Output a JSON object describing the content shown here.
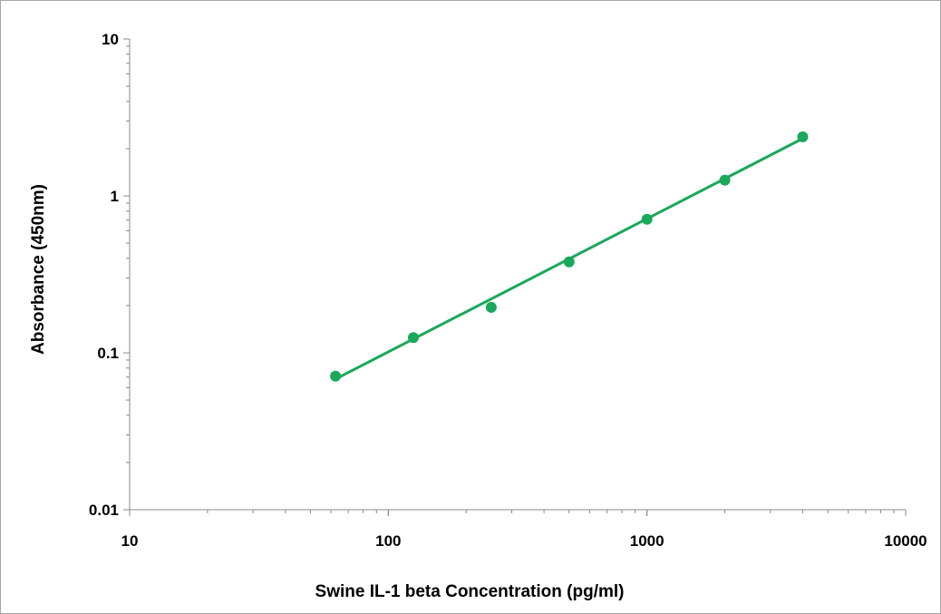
{
  "chart_data": {
    "type": "scatter",
    "title": "",
    "xlabel": "Swine  IL-1  beta  Concentration  (pg/ml)",
    "ylabel": "Absorbance (450nm)",
    "x_scale": "log",
    "y_scale": "log",
    "xlim": [
      10,
      10000
    ],
    "ylim": [
      0.01,
      10
    ],
    "x_ticks": [
      "10",
      "100",
      "1000",
      "10000"
    ],
    "y_ticks": [
      "0.01",
      "0.1",
      "1",
      "10"
    ],
    "grid": false,
    "legend": "none",
    "series": [
      {
        "x": [
          62.5,
          125,
          250,
          500,
          1000,
          2000,
          4000
        ],
        "y": [
          0.071,
          0.125,
          0.195,
          0.38,
          0.71,
          1.26,
          2.38
        ]
      }
    ],
    "trendline": {
      "type": "power",
      "x_range": [
        62.5,
        4000
      ],
      "y_range": [
        0.068,
        2.32
      ]
    },
    "colors": {
      "marker": "#1aa85a",
      "line": "#1aa85a",
      "axis": "#888888"
    }
  }
}
